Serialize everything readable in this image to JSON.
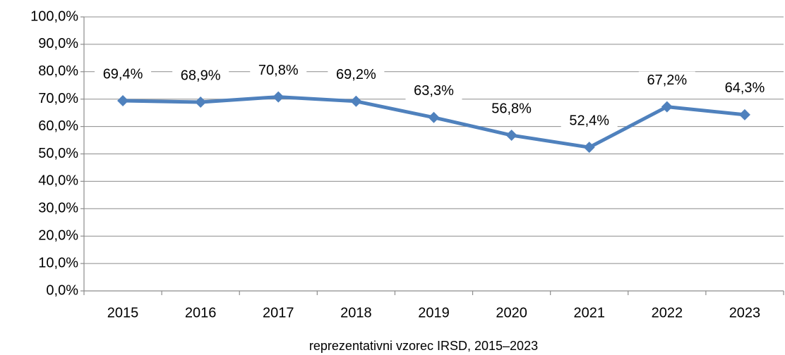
{
  "chart_data": {
    "type": "line",
    "categories": [
      "2015",
      "2016",
      "2017",
      "2018",
      "2019",
      "2020",
      "2021",
      "2022",
      "2023"
    ],
    "series": [
      {
        "color": "#4f81bd",
        "values": [
          69.4,
          68.9,
          70.8,
          69.2,
          63.3,
          56.8,
          52.4,
          67.2,
          64.3
        ],
        "value_labels": [
          "69,4%",
          "68,9%",
          "70,8%",
          "69,2%",
          "63,3%",
          "56,8%",
          "52,4%",
          "67,2%",
          "64,3%"
        ]
      }
    ],
    "ylim": [
      0,
      100
    ],
    "yticks": [
      {
        "value": 0,
        "label": "0,0%"
      },
      {
        "value": 10,
        "label": "10,0%"
      },
      {
        "value": 20,
        "label": "20,0%"
      },
      {
        "value": 30,
        "label": "30,0%"
      },
      {
        "value": 40,
        "label": "40,0%"
      },
      {
        "value": 50,
        "label": "50,0%"
      },
      {
        "value": 60,
        "label": "60,0%"
      },
      {
        "value": 70,
        "label": "70,0%"
      },
      {
        "value": 80,
        "label": "80,0%"
      },
      {
        "value": 90,
        "label": "90,0%"
      },
      {
        "value": 100,
        "label": "100,0%"
      }
    ],
    "grid": true,
    "xlabel": "reprezentativni vzorec IRSD, 2015–2023"
  }
}
